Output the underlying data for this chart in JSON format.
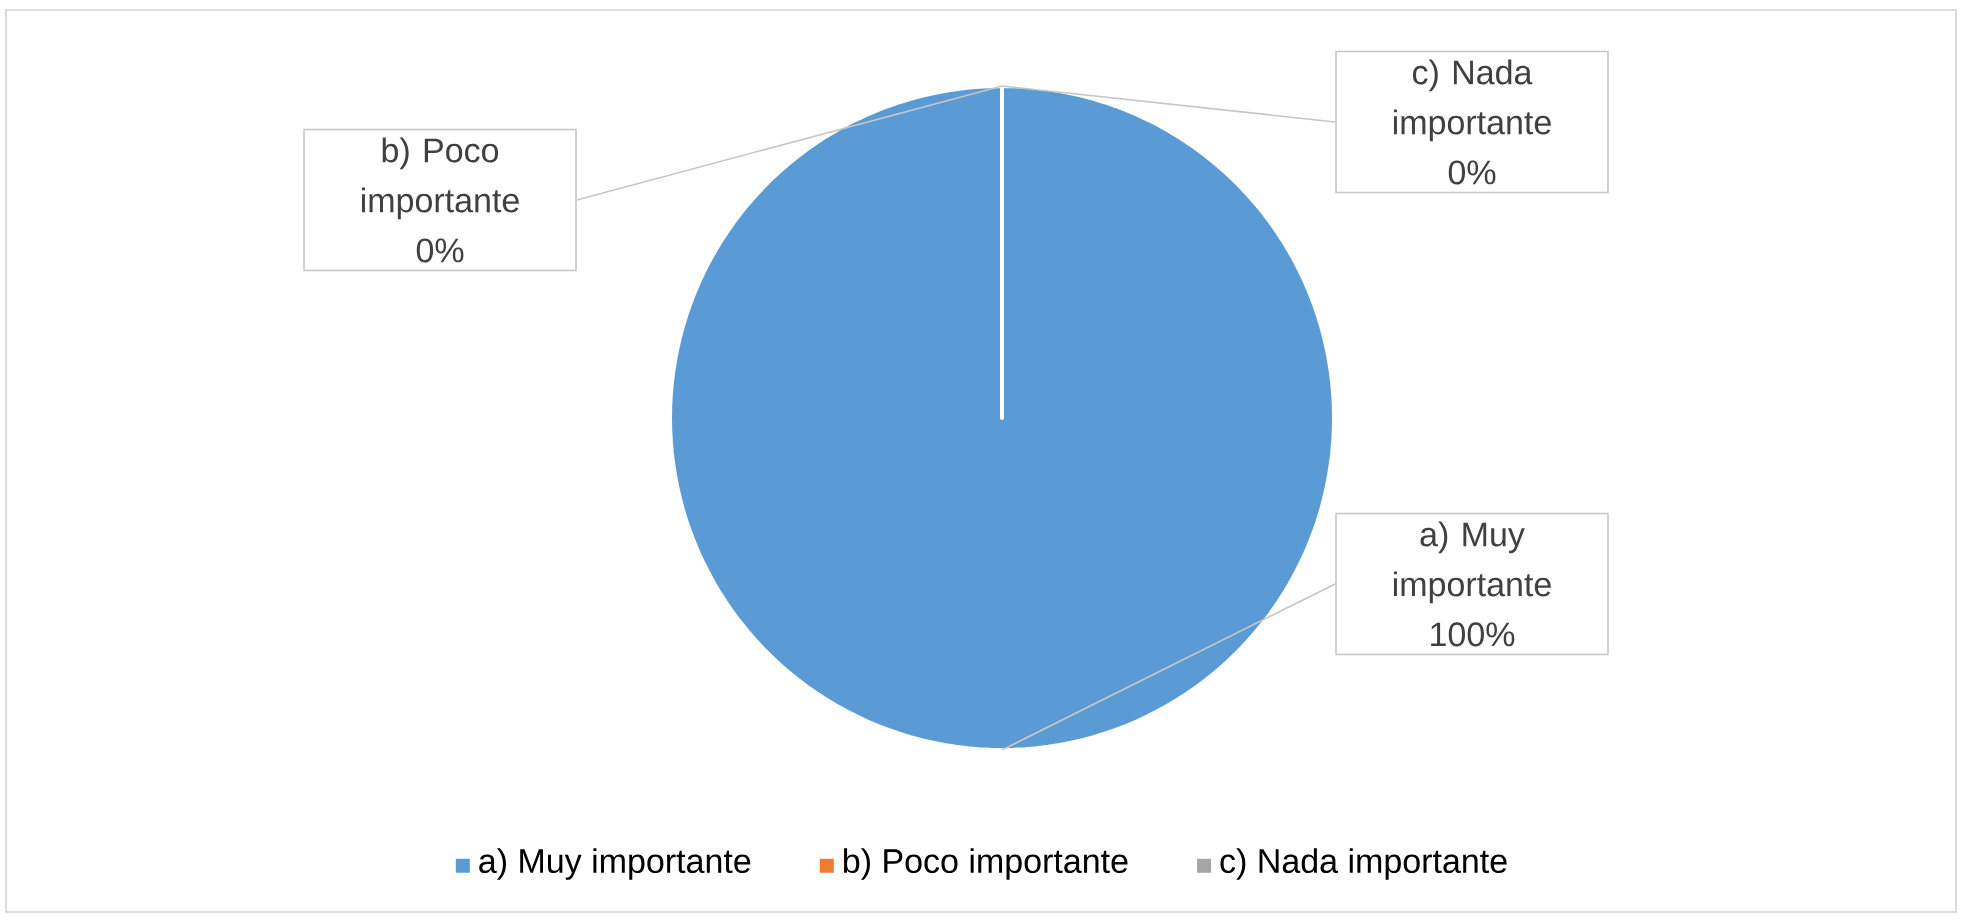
{
  "chart_data": {
    "type": "pie",
    "categories": [
      "a) Muy importante",
      "b) Poco importante",
      "c) Nada importante"
    ],
    "values": [
      100,
      0,
      0
    ],
    "colors": [
      "#5b9bd5",
      "#ed7d31",
      "#a5a5a5"
    ],
    "value_labels": [
      "100%",
      "0%",
      "0%"
    ],
    "legend": "bottom"
  }
}
